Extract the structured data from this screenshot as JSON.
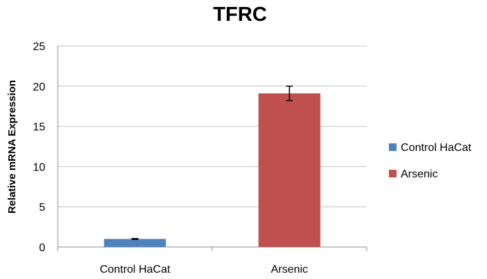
{
  "chart_data": {
    "type": "bar",
    "title": "TFRC",
    "xlabel": "",
    "ylabel": "Relative mRNA Expression",
    "categories": [
      "Control HaCat",
      "Arsenic"
    ],
    "values": [
      1.0,
      19.1
    ],
    "errors": [
      0.05,
      0.9
    ],
    "colors": [
      "#4f81bd",
      "#c0504d"
    ],
    "legend": [
      "Control HaCat",
      "Arsenic"
    ],
    "legend_position": "right",
    "ylim": [
      0,
      25
    ],
    "yticks": [
      0,
      5,
      10,
      15,
      20,
      25
    ],
    "grid": true
  }
}
